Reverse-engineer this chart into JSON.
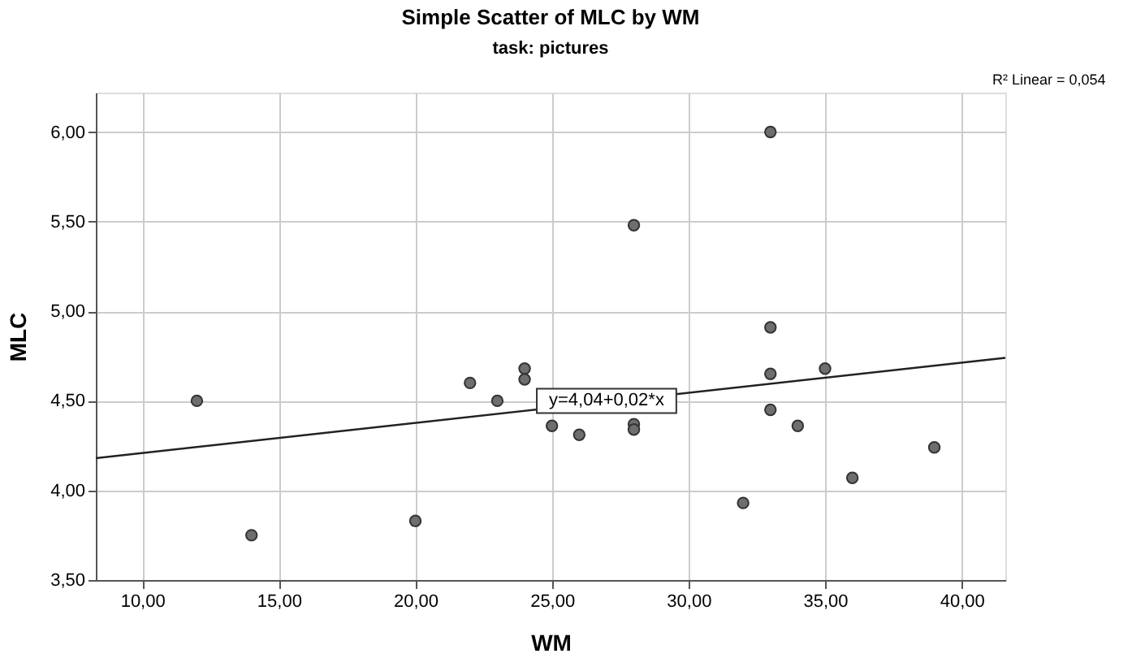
{
  "chart_data": {
    "type": "scatter",
    "title": "Simple Scatter of MLC by WM",
    "subtitle": "task: pictures",
    "xlabel": "WM",
    "ylabel": "MLC",
    "xlim": [
      8.3,
      41.6
    ],
    "ylim": [
      3.5,
      6.22
    ],
    "xticks": [
      {
        "value": 10,
        "label": "10,00"
      },
      {
        "value": 15,
        "label": "15,00"
      },
      {
        "value": 20,
        "label": "20,00"
      },
      {
        "value": 25,
        "label": "25,00"
      },
      {
        "value": 30,
        "label": "30,00"
      },
      {
        "value": 35,
        "label": "35,00"
      },
      {
        "value": 40,
        "label": "40,00"
      }
    ],
    "yticks": [
      {
        "value": 3.5,
        "label": "3,50"
      },
      {
        "value": 4,
        "label": "4,00"
      },
      {
        "value": 4.5,
        "label": "4,50"
      },
      {
        "value": 5,
        "label": "5,00"
      },
      {
        "value": 5.5,
        "label": "5,50"
      },
      {
        "value": 6,
        "label": "6,00"
      }
    ],
    "grid": true,
    "marker": "circle",
    "series": [
      {
        "color": "#6e6e6e",
        "x": [
          12,
          14,
          20,
          22,
          23,
          24,
          24,
          25,
          26,
          28,
          28,
          28,
          32,
          33,
          33,
          33,
          33,
          34,
          35,
          36,
          39
        ],
        "values": [
          4.5,
          3.75,
          3.83,
          4.6,
          4.5,
          4.68,
          4.62,
          4.36,
          4.31,
          5.48,
          4.37,
          4.34,
          3.93,
          6.0,
          4.91,
          4.65,
          4.45,
          4.36,
          4.68,
          4.07,
          4.24
        ]
      },
      {
        "type": "line",
        "marker": "none",
        "color": "#222222",
        "line_style": "solid",
        "x": [
          8.3,
          41.6
        ],
        "values": [
          4.18,
          4.74
        ]
      }
    ],
    "annotations": [
      {
        "text": "y=4,04+0,02*x",
        "x": 27,
        "y": 4.5
      },
      "R² Linear = 0,054"
    ]
  }
}
